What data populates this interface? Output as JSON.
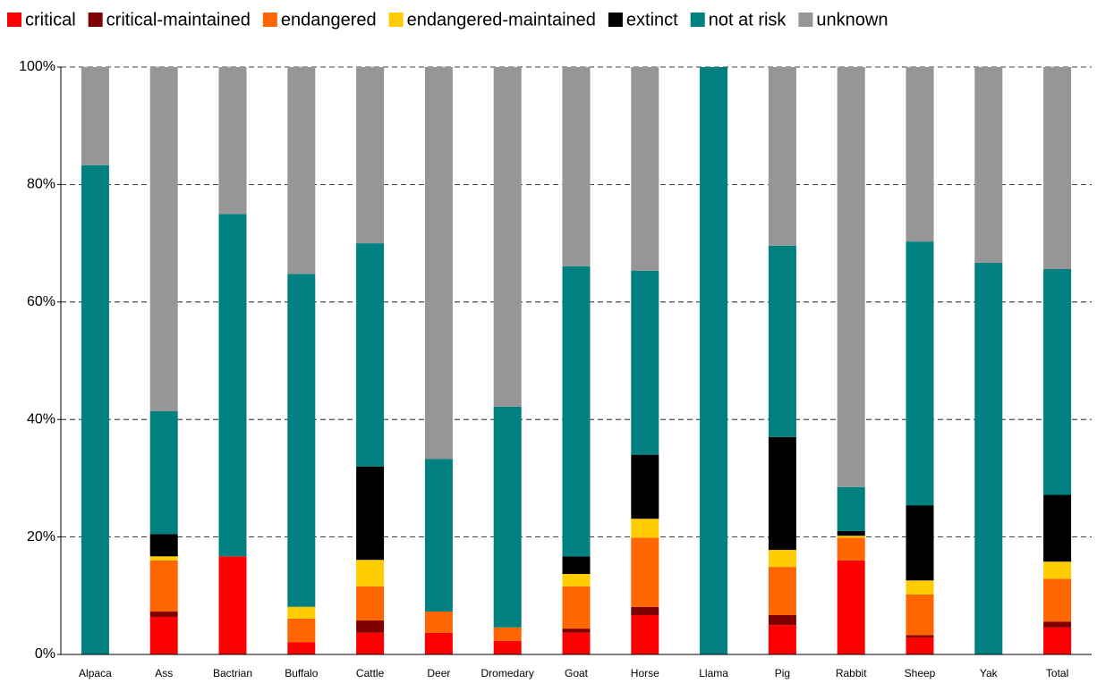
{
  "chart_data": {
    "type": "stacked_bar",
    "categories": [
      "Alpaca",
      "Ass",
      "Bactrian",
      "Buffalo",
      "Cattle",
      "Deer",
      "Dromedary",
      "Goat",
      "Horse",
      "Llama",
      "Pig",
      "Rabbit",
      "Sheep",
      "Yak",
      "Total"
    ],
    "series": [
      {
        "name": "critical",
        "color": "#ff0000",
        "values": [
          0,
          6.4,
          16.7,
          2.1,
          3.7,
          3.7,
          2.3,
          3.7,
          6.7,
          0,
          5.0,
          16.0,
          2.9,
          0,
          4.6
        ]
      },
      {
        "name": "critical-maintained",
        "color": "#800000",
        "values": [
          0,
          0.9,
          0,
          0,
          2.1,
          0,
          0,
          0.7,
          1.4,
          0,
          1.7,
          0,
          0.4,
          0,
          1.0
        ]
      },
      {
        "name": "endangered",
        "color": "#ff6600",
        "values": [
          0,
          8.7,
          0,
          4.0,
          5.8,
          3.6,
          2.3,
          7.2,
          11.8,
          0,
          8.2,
          3.9,
          6.9,
          0,
          7.3
        ]
      },
      {
        "name": "endangered-maintained",
        "color": "#ffcc00",
        "values": [
          0,
          0.7,
          0,
          2.0,
          4.5,
          0,
          0,
          2.1,
          3.2,
          0,
          2.9,
          0.3,
          2.4,
          0,
          2.9
        ]
      },
      {
        "name": "extinct",
        "color": "#000000",
        "values": [
          0,
          3.8,
          0,
          0,
          15.9,
          0,
          0,
          3.0,
          10.9,
          0,
          19.2,
          0.8,
          12.8,
          0,
          11.4
        ]
      },
      {
        "name": "not at risk",
        "color": "#008080",
        "values": [
          83.3,
          20.9,
          58.3,
          56.7,
          38.0,
          26.0,
          37.6,
          49.4,
          31.3,
          100,
          32.6,
          7.5,
          44.9,
          66.7,
          38.4
        ]
      },
      {
        "name": "unknown",
        "color": "#969696",
        "values": [
          16.7,
          58.6,
          25.0,
          35.2,
          30.0,
          66.7,
          57.8,
          33.9,
          34.7,
          0,
          30.4,
          71.5,
          29.7,
          33.3,
          34.4
        ]
      }
    ],
    "ylim": [
      0,
      100
    ],
    "yticks": [
      {
        "value": 0,
        "label": "0%"
      },
      {
        "value": 20,
        "label": "20%"
      },
      {
        "value": 40,
        "label": "40%"
      },
      {
        "value": 60,
        "label": "60%"
      },
      {
        "value": 80,
        "label": "80%"
      },
      {
        "value": 100,
        "label": "100%"
      }
    ],
    "grid": true,
    "legend": "top"
  }
}
